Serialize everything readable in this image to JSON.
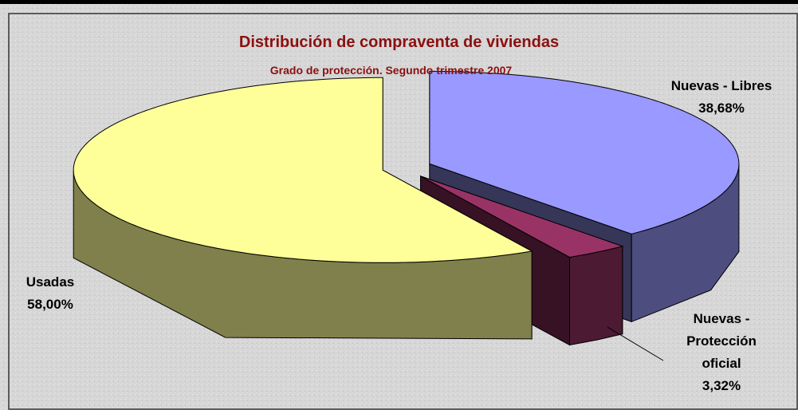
{
  "chart_data": {
    "type": "pie3d",
    "title": "Distribución de compraventa de viviendas",
    "subtitle": "Grado de protección. Segundo trimestre 2007",
    "categories": [
      "Nuevas - Libres",
      "Nuevas - Protección oficial",
      "Usadas"
    ],
    "values": [
      38.68,
      3.32,
      58.0
    ],
    "value_labels": [
      "38,68%",
      "3,32%",
      "58,00%"
    ],
    "colors": [
      "#9999ff",
      "#993366",
      "#ffff99"
    ]
  }
}
